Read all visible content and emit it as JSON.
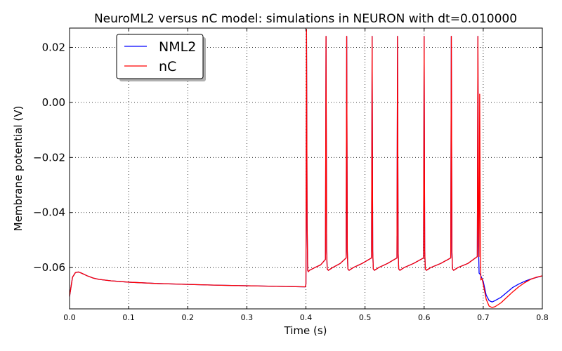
{
  "chart_data": {
    "type": "line",
    "title": "NeuroML2 versus nC model: simulations in NEURON with dt=0.010000",
    "xlabel": "Time (s)",
    "ylabel": "Membrane potential (V)",
    "xlim": [
      0.0,
      0.8
    ],
    "ylim": [
      -0.075,
      0.027
    ],
    "x_ticks": [
      0.0,
      0.1,
      0.2,
      0.3,
      0.4,
      0.5,
      0.6,
      0.7,
      0.8
    ],
    "x_tick_labels": [
      "0.0",
      "0.1",
      "0.2",
      "0.3",
      "0.4",
      "0.5",
      "0.6",
      "0.7",
      "0.8"
    ],
    "y_ticks": [
      0.02,
      0.0,
      -0.02,
      -0.04,
      -0.06
    ],
    "y_tick_labels": [
      "0.02",
      "0.00",
      "−0.02",
      "−0.04",
      "−0.06"
    ],
    "grid": true,
    "legend_position": "top-left",
    "series": [
      {
        "name": "NML2",
        "color": "#0000ff",
        "x": [
          0.0,
          0.005,
          0.01,
          0.015,
          0.02,
          0.03,
          0.04,
          0.05,
          0.07,
          0.1,
          0.15,
          0.2,
          0.25,
          0.3,
          0.35,
          0.399,
          0.4,
          0.401,
          0.402,
          0.403,
          0.404,
          0.406,
          0.415,
          0.425,
          0.433,
          0.434,
          0.435,
          0.436,
          0.438,
          0.445,
          0.458,
          0.468,
          0.469,
          0.47,
          0.471,
          0.473,
          0.48,
          0.495,
          0.511,
          0.512,
          0.513,
          0.514,
          0.516,
          0.523,
          0.538,
          0.554,
          0.555,
          0.556,
          0.557,
          0.559,
          0.566,
          0.582,
          0.599,
          0.6,
          0.601,
          0.602,
          0.604,
          0.611,
          0.628,
          0.645,
          0.646,
          0.647,
          0.648,
          0.65,
          0.657,
          0.674,
          0.69,
          0.691,
          0.692,
          0.693,
          0.695,
          0.7,
          0.705,
          0.71,
          0.715,
          0.72,
          0.73,
          0.74,
          0.75,
          0.76,
          0.77,
          0.78,
          0.79,
          0.8
        ],
        "y": [
          -0.0705,
          -0.0635,
          -0.0618,
          -0.0616,
          -0.062,
          -0.063,
          -0.0638,
          -0.0643,
          -0.0648,
          -0.0653,
          -0.0658,
          -0.0661,
          -0.0664,
          -0.0666,
          -0.0668,
          -0.067,
          -0.066,
          0.0265,
          -0.044,
          -0.061,
          -0.0615,
          -0.061,
          -0.06,
          -0.059,
          -0.057,
          0.024,
          -0.054,
          -0.0605,
          -0.061,
          -0.06,
          -0.0585,
          -0.0565,
          0.024,
          -0.054,
          -0.0605,
          -0.061,
          -0.06,
          -0.0585,
          -0.0565,
          0.024,
          -0.054,
          -0.0605,
          -0.061,
          -0.06,
          -0.0585,
          -0.0565,
          0.024,
          -0.054,
          -0.0605,
          -0.061,
          -0.06,
          -0.0585,
          -0.0565,
          0.024,
          -0.054,
          -0.0605,
          -0.061,
          -0.06,
          -0.0585,
          -0.0565,
          0.024,
          -0.054,
          -0.0605,
          -0.061,
          -0.06,
          -0.0585,
          -0.056,
          0.024,
          -0.052,
          -0.062,
          -0.0625,
          -0.065,
          -0.07,
          -0.072,
          -0.0725,
          -0.072,
          -0.0708,
          -0.069,
          -0.0672,
          -0.066,
          -0.065,
          -0.0642,
          -0.0636,
          -0.063
        ]
      },
      {
        "name": "nC",
        "color": "#ff0000",
        "x": [
          0.0,
          0.005,
          0.01,
          0.015,
          0.02,
          0.03,
          0.04,
          0.05,
          0.07,
          0.1,
          0.15,
          0.2,
          0.25,
          0.3,
          0.35,
          0.399,
          0.4,
          0.401,
          0.402,
          0.403,
          0.404,
          0.406,
          0.415,
          0.425,
          0.433,
          0.434,
          0.435,
          0.436,
          0.438,
          0.445,
          0.458,
          0.468,
          0.469,
          0.47,
          0.471,
          0.473,
          0.48,
          0.495,
          0.511,
          0.512,
          0.513,
          0.514,
          0.516,
          0.523,
          0.538,
          0.554,
          0.555,
          0.556,
          0.557,
          0.559,
          0.566,
          0.582,
          0.599,
          0.6,
          0.601,
          0.602,
          0.604,
          0.611,
          0.628,
          0.645,
          0.646,
          0.647,
          0.648,
          0.65,
          0.657,
          0.674,
          0.69,
          0.691,
          0.692,
          0.693,
          0.694,
          0.695,
          0.696,
          0.698,
          0.7,
          0.705,
          0.71,
          0.715,
          0.72,
          0.73,
          0.74,
          0.75,
          0.76,
          0.77,
          0.78,
          0.79,
          0.8
        ],
        "y": [
          -0.0705,
          -0.0635,
          -0.0618,
          -0.0616,
          -0.062,
          -0.063,
          -0.0638,
          -0.0643,
          -0.0648,
          -0.0653,
          -0.0658,
          -0.0661,
          -0.0664,
          -0.0666,
          -0.0668,
          -0.067,
          -0.066,
          0.0265,
          -0.044,
          -0.061,
          -0.0615,
          -0.061,
          -0.06,
          -0.059,
          -0.057,
          0.024,
          -0.054,
          -0.0605,
          -0.061,
          -0.06,
          -0.0585,
          -0.0565,
          0.024,
          -0.054,
          -0.0605,
          -0.061,
          -0.06,
          -0.0585,
          -0.0565,
          0.024,
          -0.054,
          -0.0605,
          -0.061,
          -0.06,
          -0.0585,
          -0.0565,
          0.024,
          -0.054,
          -0.0605,
          -0.061,
          -0.06,
          -0.0585,
          -0.0565,
          0.024,
          -0.054,
          -0.0605,
          -0.061,
          -0.06,
          -0.0585,
          -0.0565,
          0.024,
          -0.054,
          -0.0605,
          -0.061,
          -0.06,
          -0.0585,
          -0.056,
          0.024,
          -0.045,
          -0.056,
          0.003,
          -0.05,
          -0.0645,
          -0.064,
          -0.066,
          -0.0715,
          -0.074,
          -0.0745,
          -0.0742,
          -0.0728,
          -0.0708,
          -0.0688,
          -0.067,
          -0.0655,
          -0.0643,
          -0.0635,
          -0.063
        ]
      }
    ]
  }
}
